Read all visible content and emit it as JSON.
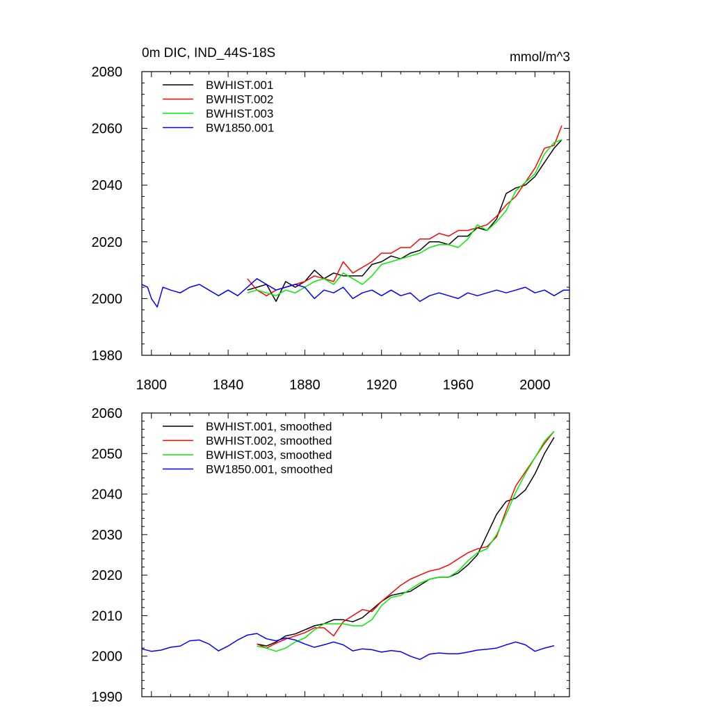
{
  "chart_data": [
    {
      "type": "line",
      "title": "0m DIC, IND_44S-18S",
      "units": "mmol/m^3",
      "xlim": [
        1795,
        2018
      ],
      "ylim": [
        1980,
        2080
      ],
      "xticks": [
        1800,
        1840,
        1880,
        1920,
        1960,
        2000
      ],
      "yticks": [
        1980,
        2000,
        2020,
        2040,
        2060,
        2080
      ],
      "xtick_labels": [
        "1800",
        "1840",
        "1880",
        "1920",
        "1960",
        "2000"
      ],
      "ytick_labels": [
        "1980",
        "2000",
        "2020",
        "2040",
        "2060",
        "2080"
      ],
      "legend_position": "top-left",
      "series": [
        {
          "name": "BWHIST.001",
          "color": "#000000",
          "x": [
            1850,
            1855,
            1860,
            1865,
            1870,
            1875,
            1880,
            1885,
            1890,
            1895,
            1900,
            1905,
            1910,
            1915,
            1920,
            1925,
            1930,
            1935,
            1940,
            1945,
            1950,
            1955,
            1960,
            1965,
            1970,
            1975,
            1980,
            1985,
            1990,
            1995,
            2000,
            2005,
            2010,
            2014
          ],
          "y": [
            2003,
            2004,
            2005,
            1999,
            2006,
            2004,
            2006,
            2010,
            2007,
            2009,
            2008,
            2008,
            2008,
            2012,
            2013,
            2015,
            2014,
            2016,
            2017,
            2020,
            2020,
            2019,
            2022,
            2022,
            2025,
            2024,
            2028,
            2037,
            2039,
            2040,
            2043,
            2048,
            2053,
            2056
          ]
        },
        {
          "name": "BWHIST.002",
          "color": "#ff0000",
          "x": [
            1850,
            1855,
            1860,
            1865,
            1870,
            1875,
            1880,
            1885,
            1890,
            1895,
            1900,
            1905,
            1910,
            1915,
            1920,
            1925,
            1930,
            1935,
            1940,
            1945,
            1950,
            1955,
            1960,
            1965,
            1970,
            1975,
            1980,
            1985,
            1990,
            1995,
            2000,
            2005,
            2010,
            2014
          ],
          "y": [
            2007,
            2003,
            2001,
            2003,
            2004,
            2005,
            2006,
            2008,
            2007,
            2006,
            2013,
            2009,
            2011,
            2013,
            2016,
            2016,
            2018,
            2018,
            2021,
            2021,
            2023,
            2022,
            2024,
            2024,
            2025,
            2026,
            2029,
            2033,
            2036,
            2041,
            2046,
            2053,
            2054,
            2061
          ]
        },
        {
          "name": "BWHIST.003",
          "color": "#00ee00",
          "x": [
            1850,
            1855,
            1860,
            1865,
            1870,
            1875,
            1880,
            1885,
            1890,
            1895,
            1900,
            1905,
            1910,
            1915,
            1920,
            1925,
            1930,
            1935,
            1940,
            1945,
            1950,
            1955,
            1960,
            1965,
            1970,
            1975,
            1980,
            1985,
            1990,
            1995,
            2000,
            2005,
            2010,
            2014
          ],
          "y": [
            2002,
            2003,
            2002,
            2001,
            2003,
            2002,
            2004,
            2006,
            2007,
            2005,
            2009,
            2007,
            2005,
            2008,
            2012,
            2013,
            2014,
            2015,
            2016,
            2018,
            2019,
            2019,
            2018,
            2021,
            2026,
            2024,
            2027,
            2031,
            2038,
            2041,
            2044,
            2051,
            2055,
            2056
          ]
        },
        {
          "name": "BW1850.001",
          "color": "#0000ff",
          "x": [
            1795,
            1798,
            1800,
            1803,
            1806,
            1810,
            1815,
            1820,
            1825,
            1830,
            1835,
            1840,
            1845,
            1850,
            1855,
            1860,
            1865,
            1870,
            1875,
            1880,
            1885,
            1890,
            1895,
            1900,
            1905,
            1910,
            1915,
            1920,
            1925,
            1930,
            1935,
            1940,
            1945,
            1950,
            1955,
            1960,
            1965,
            1970,
            1975,
            1980,
            1985,
            1990,
            1995,
            2000,
            2005,
            2010,
            2015,
            2018
          ],
          "y": [
            2005,
            2004,
            2000,
            1997,
            2004,
            2003,
            2002,
            2004,
            2005,
            2003,
            2001,
            2003,
            2001,
            2004,
            2007,
            2005,
            2003,
            2004,
            2005,
            2004,
            2000,
            2003,
            2002,
            2004,
            2000,
            2002,
            2003,
            2001,
            2003,
            2001,
            2002,
            1999,
            2001,
            2002,
            2001,
            2000,
            2002,
            2001,
            2002,
            2003,
            2002,
            2003,
            2004,
            2002,
            2003,
            2001,
            2003,
            2003
          ]
        }
      ]
    },
    {
      "type": "line",
      "title": "",
      "xlim": [
        1795,
        2018
      ],
      "ylim": [
        1990,
        2060
      ],
      "xticks": [
        1800,
        1840,
        1880,
        1920,
        1960,
        2000
      ],
      "yticks": [
        1990,
        2000,
        2010,
        2020,
        2030,
        2040,
        2050,
        2060
      ],
      "ytick_labels": [
        "1990",
        "2000",
        "2010",
        "2020",
        "2030",
        "2040",
        "2050",
        "2060"
      ],
      "legend_position": "top-left",
      "series": [
        {
          "name": "BWHIST.001, smoothed",
          "color": "#000000",
          "x": [
            1855,
            1860,
            1865,
            1870,
            1875,
            1880,
            1885,
            1890,
            1895,
            1900,
            1905,
            1910,
            1915,
            1920,
            1925,
            1930,
            1935,
            1940,
            1945,
            1950,
            1955,
            1960,
            1965,
            1970,
            1975,
            1980,
            1985,
            1990,
            1995,
            2000,
            2005,
            2010
          ],
          "y": [
            2003,
            2002.5,
            2003.5,
            2005,
            2005.5,
            2006.5,
            2007.5,
            2008,
            2009,
            2009,
            2008.5,
            2009.5,
            2011.5,
            2013.5,
            2015,
            2015.5,
            2016,
            2017.5,
            2019,
            2019.5,
            2019.5,
            2020.5,
            2022.5,
            2025,
            2030,
            2035,
            2038.2,
            2039,
            2041,
            2045,
            2050,
            2054
          ]
        },
        {
          "name": "BWHIST.002, smoothed",
          "color": "#ff0000",
          "x": [
            1855,
            1860,
            1865,
            1870,
            1875,
            1880,
            1885,
            1890,
            1895,
            1900,
            1905,
            1910,
            1915,
            1920,
            1925,
            1930,
            1935,
            1940,
            1945,
            1950,
            1955,
            1960,
            1965,
            1970,
            1975,
            1980,
            1985,
            1990,
            1995,
            2000,
            2005,
            2010
          ],
          "y": [
            2003,
            2002,
            2003.2,
            2004.2,
            2005,
            2005.8,
            2007,
            2007,
            2005,
            2008.5,
            2010,
            2011.5,
            2011,
            2013.5,
            2015.5,
            2017.5,
            2019,
            2020,
            2021,
            2021.5,
            2022.5,
            2024,
            2025.5,
            2026.5,
            2027,
            2029.5,
            2036,
            2042,
            2045.5,
            2049,
            2052.5,
            2055.5
          ]
        },
        {
          "name": "BWHIST.003, smoothed",
          "color": "#00ee00",
          "x": [
            1855,
            1860,
            1865,
            1870,
            1875,
            1880,
            1885,
            1890,
            1895,
            1900,
            1905,
            1910,
            1915,
            1920,
            1925,
            1930,
            1935,
            1940,
            1945,
            1950,
            1955,
            1960,
            1965,
            1970,
            1975,
            1980,
            1985,
            1990,
            1995,
            2000,
            2005,
            2010
          ],
          "y": [
            2002.5,
            2002,
            2001.2,
            2002,
            2003.5,
            2004.5,
            2006.5,
            2008,
            2008,
            2008,
            2007.5,
            2007.5,
            2009,
            2012.5,
            2014.5,
            2015,
            2016.5,
            2018,
            2019,
            2019.5,
            2019.5,
            2021,
            2023.5,
            2025.5,
            2026.5,
            2030,
            2035,
            2040.5,
            2045,
            2049,
            2053,
            2055.5
          ]
        },
        {
          "name": "BW1850.001, smoothed",
          "color": "#0000ff",
          "x": [
            1795,
            1800,
            1805,
            1810,
            1815,
            1820,
            1825,
            1830,
            1835,
            1840,
            1845,
            1850,
            1855,
            1860,
            1865,
            1870,
            1875,
            1880,
            1885,
            1890,
            1895,
            1900,
            1905,
            1910,
            1915,
            1920,
            1925,
            1930,
            1935,
            1940,
            1945,
            1950,
            1955,
            1960,
            1965,
            1970,
            1975,
            1980,
            1985,
            1990,
            1995,
            2000,
            2005,
            2010
          ],
          "y": [
            2001.8,
            2001.2,
            2001.5,
            2002.2,
            2002.5,
            2003.8,
            2004,
            2003,
            2001.3,
            2002.5,
            2004,
            2005.2,
            2005.6,
            2004.3,
            2003.8,
            2004.5,
            2004,
            2003,
            2002.2,
            2002.8,
            2003.5,
            2002.8,
            2001.3,
            2001.8,
            2001.6,
            2001,
            2001.4,
            2001.1,
            2000,
            1999.2,
            2000.5,
            2000.8,
            2000.6,
            2000.6,
            2001,
            2001.5,
            2001.7,
            2002,
            2002.8,
            2003.5,
            2002.8,
            2001.2,
            2002,
            2002.6
          ]
        }
      ]
    }
  ]
}
